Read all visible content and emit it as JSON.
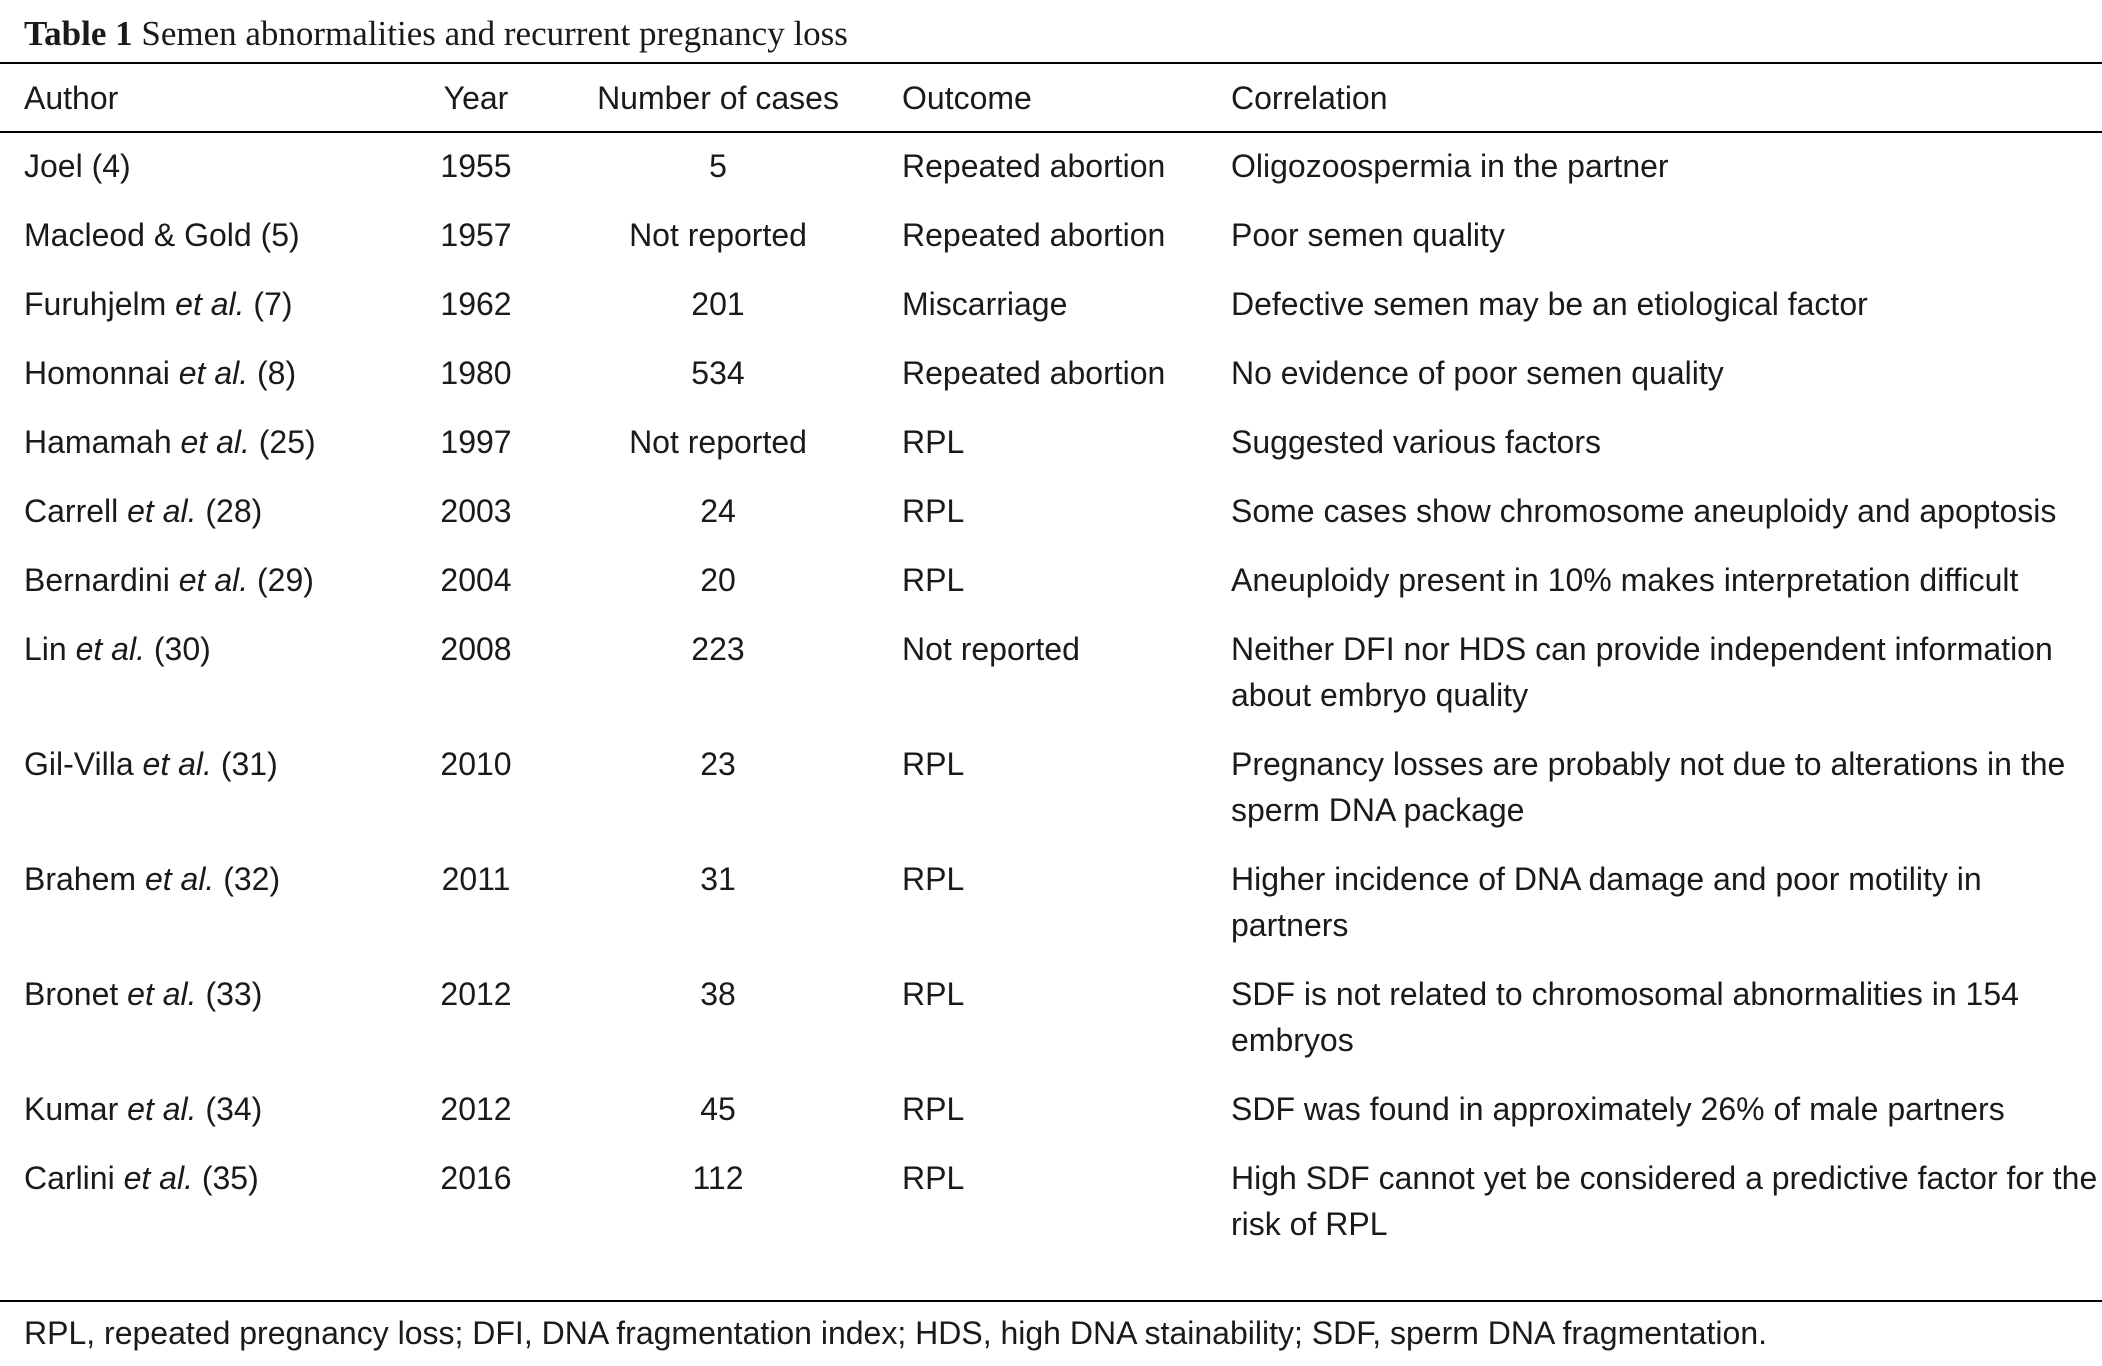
{
  "title": {
    "label": "Table 1",
    "text": "Semen abnormalities and recurrent pregnancy loss"
  },
  "columns": [
    "Author",
    "Year",
    "Number of cases",
    "Outcome",
    "Correlation"
  ],
  "rows": [
    {
      "author": "Joel",
      "etal": "",
      "ref": "(4)",
      "year": "1955",
      "cases": "5",
      "outcome": "Repeated abortion",
      "correlation": "Oligozoospermia in the partner"
    },
    {
      "author": "Macleod & Gold",
      "etal": "",
      "ref": "(5)",
      "year": "1957",
      "cases": "Not reported",
      "outcome": "Repeated abortion",
      "correlation": "Poor semen quality"
    },
    {
      "author": "Furuhjelm",
      "etal": "et al.",
      "ref": "(7)",
      "year": "1962",
      "cases": "201",
      "outcome": "Miscarriage",
      "correlation": "Defective semen may be an etiological factor"
    },
    {
      "author": "Homonnai",
      "etal": "et al.",
      "ref": "(8)",
      "year": "1980",
      "cases": "534",
      "outcome": "Repeated abortion",
      "correlation": "No evidence of poor semen quality"
    },
    {
      "author": "Hamamah",
      "etal": "et al.",
      "ref": "(25)",
      "year": "1997",
      "cases": "Not reported",
      "outcome": "RPL",
      "correlation": "Suggested various factors"
    },
    {
      "author": "Carrell",
      "etal": "et al.",
      "ref": "(28)",
      "year": "2003",
      "cases": "24",
      "outcome": "RPL",
      "correlation": "Some cases show chromosome aneuploidy and apoptosis"
    },
    {
      "author": "Bernardini",
      "etal": "et al.",
      "ref": "(29)",
      "year": "2004",
      "cases": "20",
      "outcome": "RPL",
      "correlation": "Aneuploidy present in 10% makes interpretation difficult"
    },
    {
      "author": "Lin",
      "etal": "et al.",
      "ref": "(30)",
      "year": "2008",
      "cases": "223",
      "outcome": "Not reported",
      "correlation": "Neither DFI nor HDS can provide independent information about embryo quality"
    },
    {
      "author": "Gil-Villa",
      "etal": "et al.",
      "ref": "(31)",
      "year": "2010",
      "cases": "23",
      "outcome": "RPL",
      "correlation": "Pregnancy losses are probably not due to alterations in the sperm DNA package"
    },
    {
      "author": "Brahem",
      "etal": "et al.",
      "ref": "(32)",
      "year": "2011",
      "cases": "31",
      "outcome": "RPL",
      "correlation": "Higher incidence of DNA damage and poor motility in partners"
    },
    {
      "author": "Bronet",
      "etal": "et al.",
      "ref": "(33)",
      "year": "2012",
      "cases": "38",
      "outcome": "RPL",
      "correlation": "SDF is not related to chromosomal abnormalities in 154 embryos"
    },
    {
      "author": "Kumar",
      "etal": "et al.",
      "ref": "(34)",
      "year": "2012",
      "cases": "45",
      "outcome": "RPL",
      "correlation": "SDF was found in approximately 26% of male partners"
    },
    {
      "author": "Carlini",
      "etal": "et al.",
      "ref": "(35)",
      "year": "2016",
      "cases": "112",
      "outcome": "RPL",
      "correlation": "High SDF cannot yet be considered a predictive factor for the risk of RPL"
    }
  ],
  "footer": "RPL, repeated pregnancy loss; DFI, DNA fragmentation index; HDS, high DNA stainability; SDF, sperm DNA fragmentation."
}
